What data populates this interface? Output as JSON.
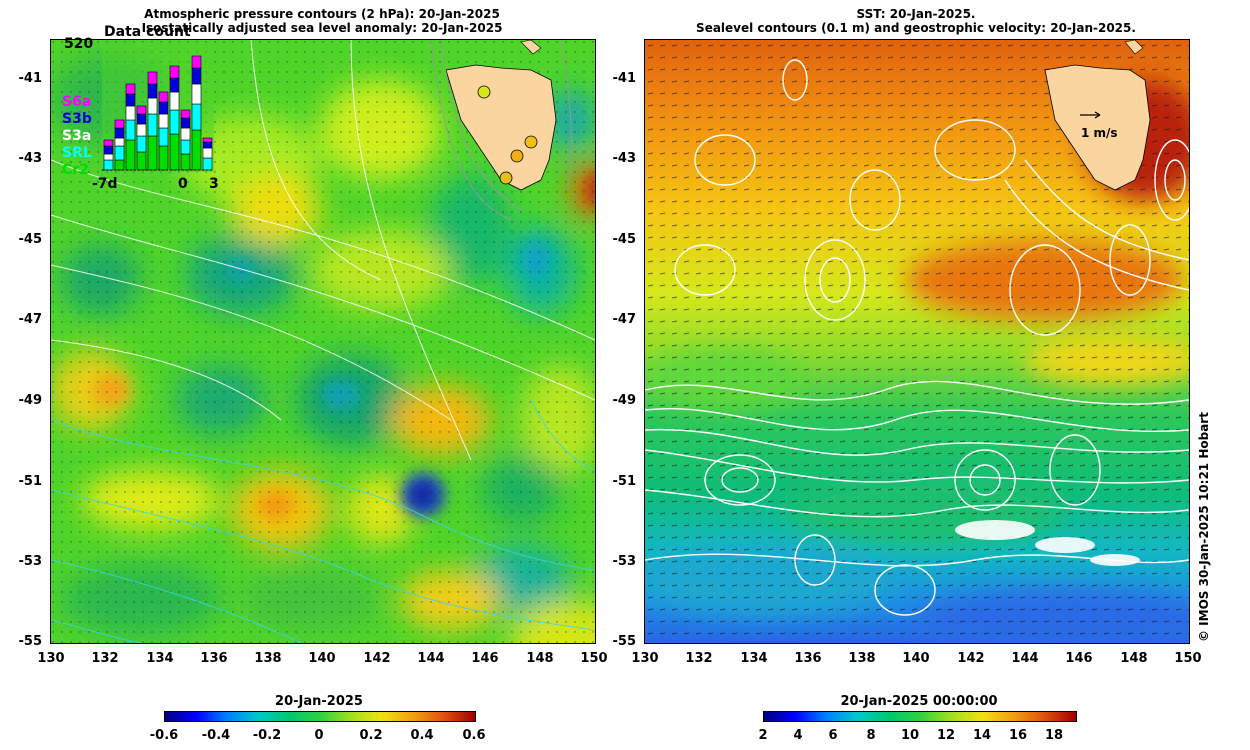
{
  "left_panel": {
    "title_line1": "Atmospheric pressure contours (2 hPa): 20-Jan-2025",
    "title_line2": "Isostatically adjusted sea level anomaly: 20-Jan-2025",
    "inset": {
      "title": "Data count",
      "max_value": "520",
      "legend": [
        {
          "label": "S6a",
          "color": "#ff00ff"
        },
        {
          "label": "S3b",
          "color": "#0000dd"
        },
        {
          "label": "S3a",
          "color": "#ffffff"
        },
        {
          "label": "SRL",
          "color": "#00ffff"
        },
        {
          "label": "Cr2",
          "color": "#00dd00"
        }
      ],
      "x_labels": [
        "-7d",
        "0",
        "3"
      ]
    },
    "colorbar": {
      "title": "20-Jan-2025",
      "labels": [
        "-0.6",
        "-0.4",
        "-0.2",
        "0",
        "0.2",
        "0.4",
        "0.6"
      ]
    }
  },
  "right_panel": {
    "title_line1": "SST: 20-Jan-2025.",
    "title_line2": "Sealevel contours (0.1 m) and geostrophic velocity: 20-Jan-2025.",
    "velocity_scale": "1 m/s",
    "colorbar": {
      "title": "20-Jan-2025 00:00:00",
      "labels": [
        "2",
        "4",
        "6",
        "8",
        "10",
        "12",
        "14",
        "16",
        "18"
      ]
    }
  },
  "axes": {
    "y_labels": [
      "-41",
      "-43",
      "-45",
      "-47",
      "-49",
      "-51",
      "-53",
      "-55"
    ],
    "x_labels": [
      "130",
      "132",
      "134",
      "136",
      "138",
      "140",
      "142",
      "144",
      "146",
      "148",
      "150"
    ]
  },
  "credit": "© IMOS 30-Jan-2025 10:21 Hobart"
}
